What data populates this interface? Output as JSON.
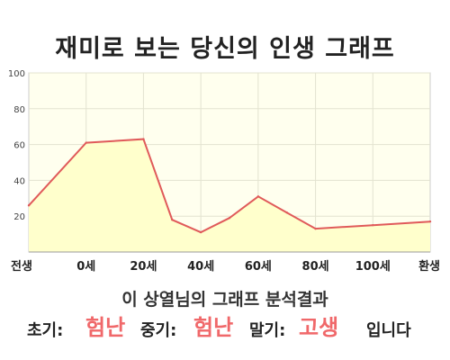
{
  "title": "재미로 보는 당신의 인생 그래프",
  "chart_data": {
    "type": "area",
    "x_categories": [
      "전생",
      "0세",
      "20세",
      "40세",
      "60세",
      "80세",
      "100세",
      "환생"
    ],
    "y_ticks": [
      20,
      40,
      60,
      80,
      100
    ],
    "ylim": [
      0,
      100
    ],
    "grid": true,
    "line_color": "#e05a5a",
    "fill_color": "#ffffcc",
    "plot_background": "#ffffee",
    "points": [
      {
        "x": -1.0,
        "y": 26
      },
      {
        "x": 0.0,
        "y": 61
      },
      {
        "x": 1.0,
        "y": 63
      },
      {
        "x": 1.5,
        "y": 18
      },
      {
        "x": 2.0,
        "y": 11
      },
      {
        "x": 2.5,
        "y": 19
      },
      {
        "x": 3.0,
        "y": 31
      },
      {
        "x": 3.5,
        "y": 22
      },
      {
        "x": 4.0,
        "y": 13
      },
      {
        "x": 5.0,
        "y": 15
      },
      {
        "x": 6.0,
        "y": 17
      }
    ]
  },
  "result_line": "이 상열님의 그래프 분석결과",
  "verdict": {
    "early_label": "초기:",
    "early_value": "험난",
    "mid_label": "중기:",
    "mid_value": "험난",
    "late_label": "말기:",
    "late_value": "고생",
    "suffix": "입니다"
  },
  "colors": {
    "accent": "#f0686a",
    "line": "#e05a5a",
    "fill": "#ffffcc"
  }
}
